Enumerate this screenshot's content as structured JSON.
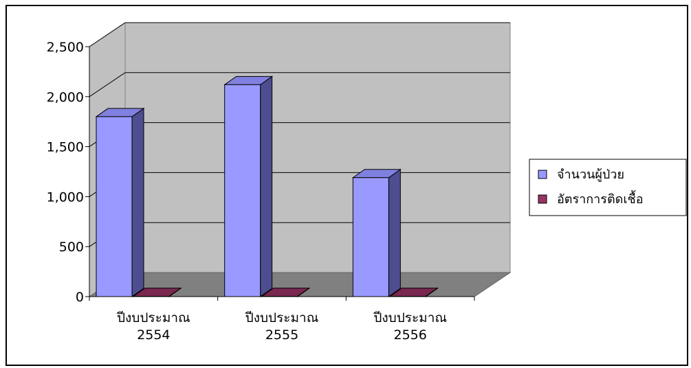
{
  "chart_data": {
    "type": "bar",
    "style": "3d-column",
    "categories": [
      [
        "ปีงบประมาณ",
        "2554"
      ],
      [
        "ปีงบประมาณ",
        "2555"
      ],
      [
        "ปีงบประมาณ",
        "2556"
      ]
    ],
    "series": [
      {
        "name": "จำนวนผู้ป่วย",
        "values": [
          1800,
          2120,
          1190
        ],
        "color": "#9999ff",
        "side_color": "#4d4d8f",
        "top_color": "#8080e0"
      },
      {
        "name": "อัตราการติดเชื้อ",
        "values": [
          3,
          3,
          3
        ],
        "color": "#993366",
        "side_color": "#5a1e3c",
        "top_color": "#7a2850"
      }
    ],
    "ylim": [
      0,
      2500
    ],
    "yticks": [
      "0",
      "500",
      "1,000",
      "1,500",
      "2,000",
      "2,500"
    ],
    "ytick_values": [
      0,
      500,
      1000,
      1500,
      2000,
      2500
    ],
    "grid": true,
    "legend": "right",
    "wall_color": "#c0c0c0",
    "floor_color": "#808080"
  }
}
